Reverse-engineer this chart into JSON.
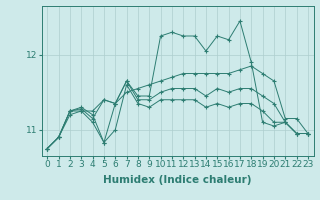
{
  "background_color": "#ceeaea",
  "line_color": "#2d7d72",
  "grid_color": "#aecece",
  "xlabel": "Humidex (Indice chaleur)",
  "xlabel_fontsize": 7.5,
  "tick_fontsize": 6.5,
  "xlim": [
    -0.5,
    23.5
  ],
  "ylim": [
    10.65,
    12.65
  ],
  "yticks": [
    11,
    12
  ],
  "xticks": [
    0,
    1,
    2,
    3,
    4,
    5,
    6,
    7,
    8,
    9,
    10,
    11,
    12,
    13,
    14,
    15,
    16,
    17,
    18,
    19,
    20,
    21,
    22,
    23
  ],
  "series": [
    [
      10.75,
      10.9,
      11.25,
      11.3,
      11.2,
      10.83,
      11.35,
      11.65,
      11.45,
      11.45,
      12.25,
      12.3,
      12.25,
      12.25,
      12.05,
      12.25,
      12.2,
      12.45,
      11.9,
      11.1,
      11.05,
      11.1,
      10.95,
      10.95
    ],
    [
      10.75,
      10.9,
      11.25,
      11.28,
      11.15,
      11.4,
      11.35,
      11.5,
      11.55,
      11.6,
      11.65,
      11.7,
      11.75,
      11.75,
      11.75,
      11.75,
      11.75,
      11.8,
      11.85,
      11.75,
      11.65,
      11.15,
      11.15,
      10.95
    ],
    [
      10.75,
      10.9,
      11.25,
      11.25,
      11.25,
      11.4,
      11.35,
      11.65,
      11.4,
      11.4,
      11.5,
      11.55,
      11.55,
      11.55,
      11.45,
      11.55,
      11.5,
      11.55,
      11.55,
      11.45,
      11.35,
      11.1,
      10.95,
      10.95
    ],
    [
      10.75,
      10.9,
      11.2,
      11.25,
      11.1,
      10.83,
      11.0,
      11.6,
      11.35,
      11.3,
      11.4,
      11.4,
      11.4,
      11.4,
      11.3,
      11.35,
      11.3,
      11.35,
      11.35,
      11.25,
      11.1,
      11.1,
      10.95,
      10.95
    ]
  ]
}
